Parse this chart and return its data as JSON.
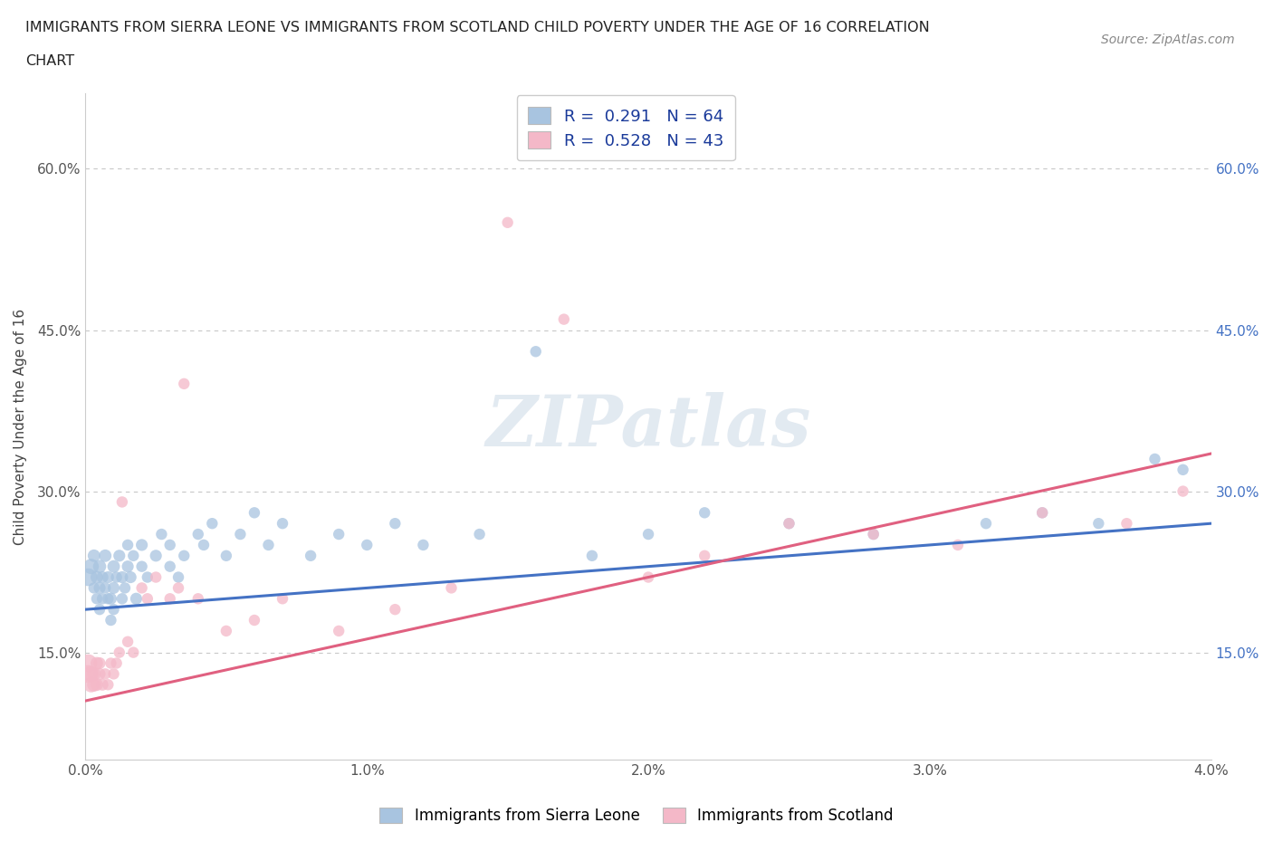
{
  "title_line1": "IMMIGRANTS FROM SIERRA LEONE VS IMMIGRANTS FROM SCOTLAND CHILD POVERTY UNDER THE AGE OF 16 CORRELATION",
  "title_line2": "CHART",
  "source": "Source: ZipAtlas.com",
  "ylabel": "Child Poverty Under the Age of 16",
  "xlim": [
    0.0,
    0.04
  ],
  "ylim": [
    0.05,
    0.67
  ],
  "xticks": [
    0.0,
    0.01,
    0.02,
    0.03,
    0.04
  ],
  "xticklabels": [
    "0.0%",
    "1.0%",
    "2.0%",
    "3.0%",
    "4.0%"
  ],
  "yticks": [
    0.15,
    0.3,
    0.45,
    0.6
  ],
  "yticklabels": [
    "15.0%",
    "30.0%",
    "45.0%",
    "60.0%"
  ],
  "watermark": "ZIPatlas",
  "color_sierra": "#a8c4e0",
  "color_scotland": "#f4b8c8",
  "color_line_sierra": "#4472c4",
  "color_line_scotland": "#e06080",
  "background_color": "#ffffff",
  "grid_color": "#c8c8c8",
  "sl_line_y0": 0.19,
  "sl_line_y1": 0.27,
  "sc_line_y0": 0.105,
  "sc_line_y1": 0.335,
  "sierra_leone_x": [
    0.0001,
    0.0002,
    0.0003,
    0.0003,
    0.0004,
    0.0004,
    0.0005,
    0.0005,
    0.0005,
    0.0006,
    0.0006,
    0.0007,
    0.0007,
    0.0008,
    0.0008,
    0.0009,
    0.0009,
    0.001,
    0.001,
    0.001,
    0.0011,
    0.0012,
    0.0013,
    0.0013,
    0.0014,
    0.0015,
    0.0015,
    0.0016,
    0.0017,
    0.0018,
    0.002,
    0.002,
    0.0022,
    0.0025,
    0.0027,
    0.003,
    0.003,
    0.0033,
    0.0035,
    0.004,
    0.0042,
    0.0045,
    0.005,
    0.0055,
    0.006,
    0.0065,
    0.007,
    0.008,
    0.009,
    0.01,
    0.011,
    0.012,
    0.014,
    0.016,
    0.018,
    0.02,
    0.022,
    0.025,
    0.028,
    0.032,
    0.034,
    0.036,
    0.038,
    0.039
  ],
  "sierra_leone_y": [
    0.22,
    0.23,
    0.21,
    0.24,
    0.2,
    0.22,
    0.19,
    0.21,
    0.23,
    0.2,
    0.22,
    0.21,
    0.24,
    0.2,
    0.22,
    0.18,
    0.2,
    0.19,
    0.21,
    0.23,
    0.22,
    0.24,
    0.2,
    0.22,
    0.21,
    0.23,
    0.25,
    0.22,
    0.24,
    0.2,
    0.23,
    0.25,
    0.22,
    0.24,
    0.26,
    0.23,
    0.25,
    0.22,
    0.24,
    0.26,
    0.25,
    0.27,
    0.24,
    0.26,
    0.28,
    0.25,
    0.27,
    0.24,
    0.26,
    0.25,
    0.27,
    0.25,
    0.26,
    0.43,
    0.24,
    0.26,
    0.28,
    0.27,
    0.26,
    0.27,
    0.28,
    0.27,
    0.33,
    0.32
  ],
  "sierra_leone_sizes": [
    200,
    150,
    80,
    100,
    80,
    100,
    80,
    90,
    110,
    80,
    90,
    80,
    100,
    80,
    90,
    80,
    90,
    80,
    90,
    100,
    80,
    90,
    80,
    90,
    80,
    90,
    80,
    90,
    80,
    90,
    80,
    90,
    80,
    90,
    80,
    80,
    80,
    80,
    80,
    80,
    80,
    80,
    80,
    80,
    80,
    80,
    80,
    80,
    80,
    80,
    80,
    80,
    80,
    80,
    80,
    80,
    80,
    80,
    80,
    80,
    80,
    80,
    80,
    80
  ],
  "scotland_x": [
    0.0001,
    0.0001,
    0.0002,
    0.0002,
    0.0003,
    0.0003,
    0.0004,
    0.0004,
    0.0005,
    0.0005,
    0.0006,
    0.0007,
    0.0008,
    0.0009,
    0.001,
    0.0011,
    0.0012,
    0.0013,
    0.0015,
    0.0017,
    0.002,
    0.0022,
    0.0025,
    0.003,
    0.0033,
    0.0035,
    0.004,
    0.005,
    0.006,
    0.007,
    0.009,
    0.011,
    0.013,
    0.015,
    0.017,
    0.02,
    0.022,
    0.025,
    0.028,
    0.031,
    0.034,
    0.037,
    0.039
  ],
  "scotland_y": [
    0.13,
    0.14,
    0.12,
    0.13,
    0.12,
    0.13,
    0.12,
    0.14,
    0.13,
    0.14,
    0.12,
    0.13,
    0.12,
    0.14,
    0.13,
    0.14,
    0.15,
    0.29,
    0.16,
    0.15,
    0.21,
    0.2,
    0.22,
    0.2,
    0.21,
    0.4,
    0.2,
    0.17,
    0.18,
    0.2,
    0.17,
    0.19,
    0.21,
    0.55,
    0.46,
    0.22,
    0.24,
    0.27,
    0.26,
    0.25,
    0.28,
    0.27,
    0.3
  ],
  "scotland_sizes": [
    200,
    200,
    150,
    150,
    120,
    120,
    100,
    100,
    90,
    90,
    90,
    80,
    80,
    80,
    80,
    80,
    80,
    80,
    80,
    80,
    80,
    80,
    80,
    80,
    80,
    80,
    80,
    80,
    80,
    80,
    80,
    80,
    80,
    80,
    80,
    80,
    80,
    80,
    80,
    80,
    80,
    80,
    80
  ]
}
